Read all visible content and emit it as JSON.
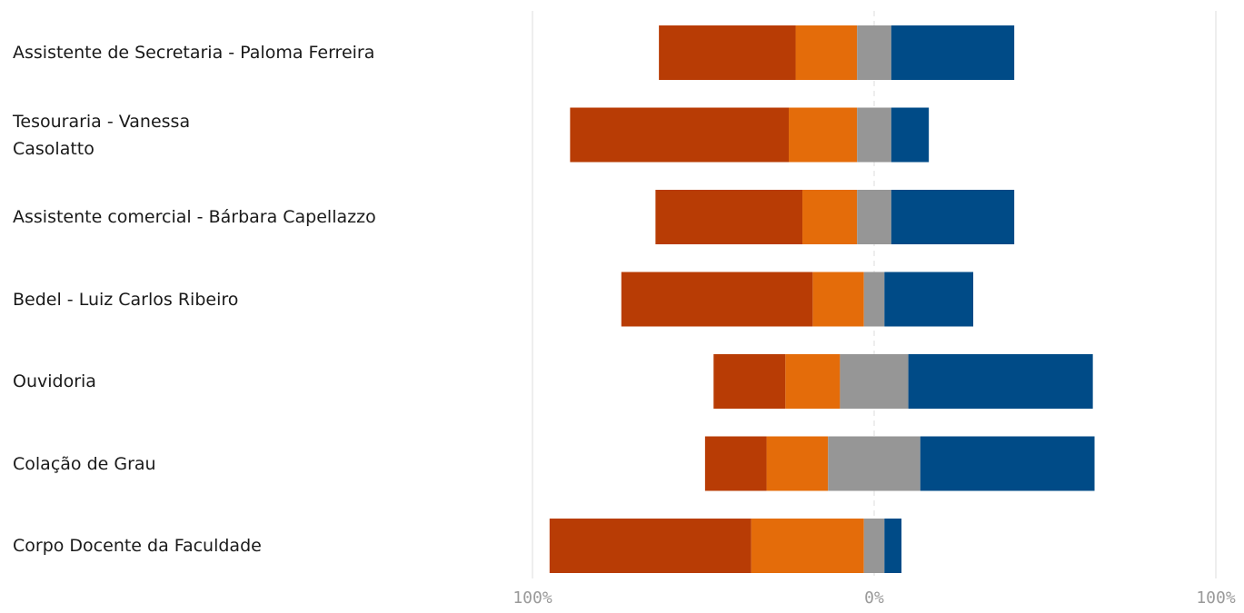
{
  "chart_data": {
    "type": "bar",
    "orientation": "horizontal",
    "stacked": "diverging",
    "categories": [
      "Assistente de Secretaria - Paloma Ferreira",
      "Tesouraria - Vanessa\nCasolatto",
      "Assistente comercial - Bárbara Capellazzo",
      "Bedel - Luiz Carlos Ribeiro",
      "Ouvidoria",
      "Colação de Grau",
      "Corpo Docente da Faculdade"
    ],
    "series": [
      {
        "color": "#b83c05",
        "values": [
          40,
          64,
          43,
          56,
          21,
          18,
          59
        ]
      },
      {
        "color": "#e46c0a",
        "values": [
          18,
          20,
          16,
          15,
          16,
          18,
          33
        ]
      },
      {
        "color": "#969696",
        "values": [
          10,
          10,
          10,
          6,
          20,
          27,
          6
        ]
      },
      {
        "color": "#004b87",
        "values": [
          36,
          11,
          36,
          26,
          54,
          51,
          5
        ]
      }
    ],
    "xlim": [
      -100,
      100
    ],
    "x_ticks": [
      {
        "value": -100,
        "label": "100%"
      },
      {
        "value": 0,
        "label": "0%"
      },
      {
        "value": 100,
        "label": "100%"
      }
    ],
    "grid": true,
    "legend": "none"
  }
}
